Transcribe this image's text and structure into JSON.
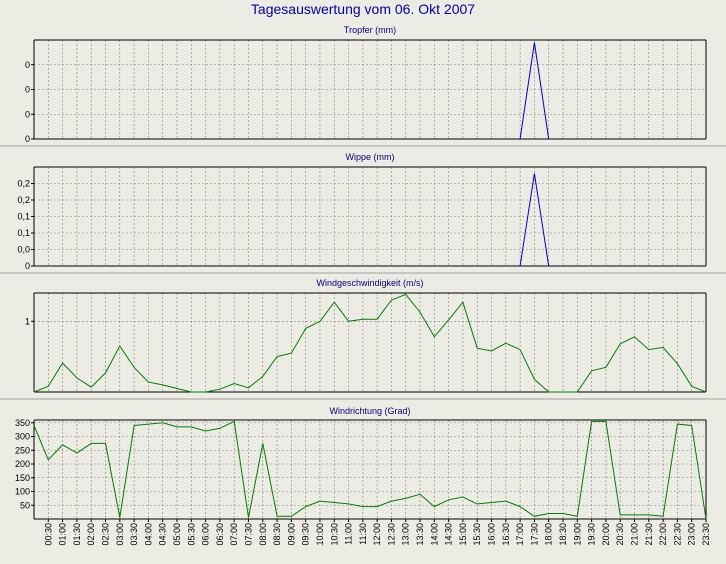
{
  "title": "Tagesauswertung vom 06. Okt 2007",
  "colors": {
    "rain": "#0000cc",
    "wind": "#008000",
    "title": "#0000aa",
    "grid": "#808080"
  },
  "chart_data": [
    {
      "type": "line",
      "title": "Tropfer (mm)",
      "ylim": [
        0,
        0.4
      ],
      "yticks": [
        0,
        0.1,
        0.2,
        0.3
      ],
      "ytick_labels": [
        "0",
        "0",
        "0",
        "0"
      ],
      "grid": true,
      "color": "#0000cc",
      "x_hours": [
        17.0,
        17.5,
        18.0
      ],
      "y": [
        0,
        0.39,
        0
      ]
    },
    {
      "type": "line",
      "title": "Wippe (mm)",
      "ylim": [
        0,
        0.3
      ],
      "yticks": [
        0,
        0.05,
        0.1,
        0.15,
        0.2,
        0.25
      ],
      "ytick_labels": [
        "0",
        "0,0",
        "0,1",
        "0,1",
        "0,2",
        "0,2"
      ],
      "grid": true,
      "color": "#0000cc",
      "x_hours": [
        17.0,
        17.5,
        18.0
      ],
      "y": [
        0,
        0.28,
        0
      ]
    },
    {
      "type": "line",
      "title": "Windgeschwindigkeit (m/s)",
      "ylim": [
        0,
        1.4
      ],
      "yticks": [
        1
      ],
      "ytick_labels": [
        "1"
      ],
      "grid": true,
      "color": "#008000",
      "x_hours": [
        0.0,
        0.5,
        1.0,
        1.5,
        2.0,
        2.5,
        3.0,
        3.5,
        4.0,
        4.5,
        5.0,
        5.5,
        6.0,
        6.5,
        7.0,
        7.5,
        8.0,
        8.5,
        9.0,
        9.5,
        10.0,
        10.5,
        11.0,
        11.5,
        12.0,
        12.5,
        13.0,
        13.5,
        14.0,
        14.5,
        15.0,
        15.5,
        16.0,
        16.5,
        17.0,
        17.5,
        18.0,
        18.5,
        19.0,
        19.5,
        20.0,
        20.5,
        21.0,
        21.5,
        22.0,
        22.5,
        23.0,
        23.5
      ],
      "y": [
        0.0,
        0.08,
        0.41,
        0.2,
        0.07,
        0.27,
        0.65,
        0.35,
        0.14,
        0.1,
        0.05,
        0.0,
        0.0,
        0.04,
        0.12,
        0.06,
        0.22,
        0.5,
        0.55,
        0.9,
        1.0,
        1.27,
        1.0,
        1.03,
        1.03,
        1.3,
        1.38,
        1.13,
        0.78,
        1.02,
        1.27,
        0.62,
        0.58,
        0.69,
        0.6,
        0.18,
        0.0,
        0.0,
        0.0,
        0.3,
        0.35,
        0.68,
        0.78,
        0.6,
        0.63,
        0.4,
        0.08,
        0.0
      ]
    },
    {
      "type": "line",
      "title": "Windrichtung (Grad)",
      "ylim": [
        0,
        360
      ],
      "yticks": [
        50,
        100,
        150,
        200,
        250,
        300,
        350
      ],
      "ytick_labels": [
        "50",
        "100",
        "150",
        "200",
        "250",
        "300",
        "350"
      ],
      "grid": true,
      "color": "#008000",
      "x_hours": [
        0.0,
        0.5,
        1.0,
        1.5,
        2.0,
        2.5,
        3.0,
        3.5,
        4.0,
        4.5,
        5.0,
        5.5,
        6.0,
        6.5,
        7.0,
        7.5,
        8.0,
        8.5,
        9.0,
        9.5,
        10.0,
        10.5,
        11.0,
        11.5,
        12.0,
        12.5,
        13.0,
        13.5,
        14.0,
        14.5,
        15.0,
        15.5,
        16.0,
        16.5,
        17.0,
        17.5,
        18.0,
        18.5,
        19.0,
        19.5,
        20.0,
        20.5,
        21.0,
        21.5,
        22.0,
        22.5,
        23.0,
        23.5
      ],
      "y": [
        340,
        215,
        270,
        240,
        275,
        275,
        5,
        340,
        345,
        350,
        335,
        335,
        320,
        330,
        355,
        5,
        275,
        10,
        10,
        45,
        65,
        60,
        55,
        45,
        45,
        65,
        75,
        90,
        45,
        70,
        80,
        55,
        60,
        65,
        45,
        10,
        20,
        20,
        10,
        355,
        355,
        15,
        15,
        15,
        10,
        345,
        340,
        0
      ],
      "xlabels": [
        "00:30",
        "01:00",
        "01:30",
        "02:00",
        "02:30",
        "03:00",
        "03:30",
        "04:00",
        "04:30",
        "05:00",
        "05:30",
        "06:00",
        "06:30",
        "07:00",
        "07:30",
        "08:00",
        "08:30",
        "09:00",
        "09:30",
        "10:00",
        "10:30",
        "11:00",
        "11:30",
        "12:00",
        "12:30",
        "13:00",
        "13:30",
        "14:00",
        "14:30",
        "15:00",
        "15:30",
        "16:00",
        "16:30",
        "17:00",
        "17:30",
        "18:00",
        "18:30",
        "19:00",
        "19:30",
        "20:00",
        "20:30",
        "21:00",
        "21:30",
        "22:00",
        "22:30",
        "23:00",
        "23:30"
      ]
    }
  ]
}
